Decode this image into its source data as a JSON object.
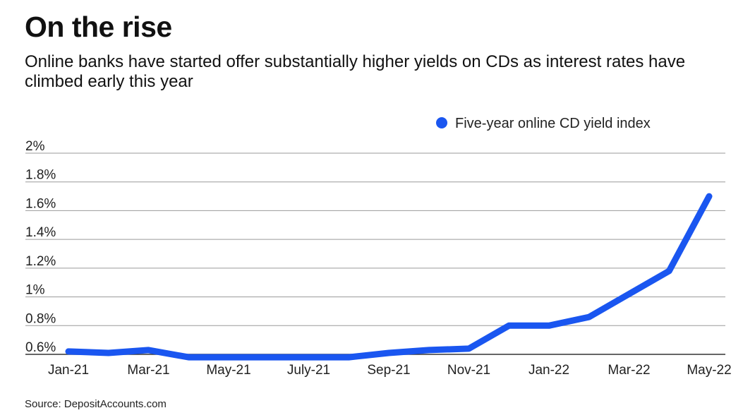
{
  "chart_data": {
    "type": "line",
    "title": "On the rise",
    "subtitle": "Online banks have started offer substantially higher yields on CDs as interest rates have climbed early this year",
    "xlabel": "",
    "ylabel": "",
    "x_tick_labels": [
      "Jan-21",
      "Mar-21",
      "May-21",
      "July-21",
      "Sep-21",
      "Nov-21",
      "Jan-22",
      "Mar-22",
      "May-22"
    ],
    "y_tick_labels": [
      "0.6%",
      "0.8%",
      "1%",
      "1.2%",
      "1.4%",
      "1.6%",
      "1.8%",
      "2%"
    ],
    "y_ticks": [
      0.6,
      0.8,
      1.0,
      1.2,
      1.4,
      1.6,
      1.8,
      2.0
    ],
    "ylim": [
      0.6,
      2.0
    ],
    "grid": true,
    "legend_position": "top-right",
    "categories": [
      "Jan-21",
      "Feb-21",
      "Mar-21",
      "Apr-21",
      "May-21",
      "Jun-21",
      "Jul-21",
      "Aug-21",
      "Sep-21",
      "Oct-21",
      "Nov-21",
      "Dec-21",
      "Jan-22",
      "Feb-22",
      "Mar-22",
      "Apr-22",
      "May-22"
    ],
    "series": [
      {
        "name": "Five-year online CD yield index",
        "color": "#1a56f0",
        "values": [
          0.62,
          0.61,
          0.63,
          0.58,
          0.58,
          0.58,
          0.58,
          0.58,
          0.61,
          0.63,
          0.64,
          0.8,
          0.8,
          0.86,
          1.02,
          1.18,
          1.7
        ]
      }
    ],
    "source": "Source: DepositAccounts.com"
  },
  "colors": {
    "line": "#1a56f0",
    "grid": "#9a9a9a",
    "axis": "#333333",
    "text": "#111111"
  }
}
